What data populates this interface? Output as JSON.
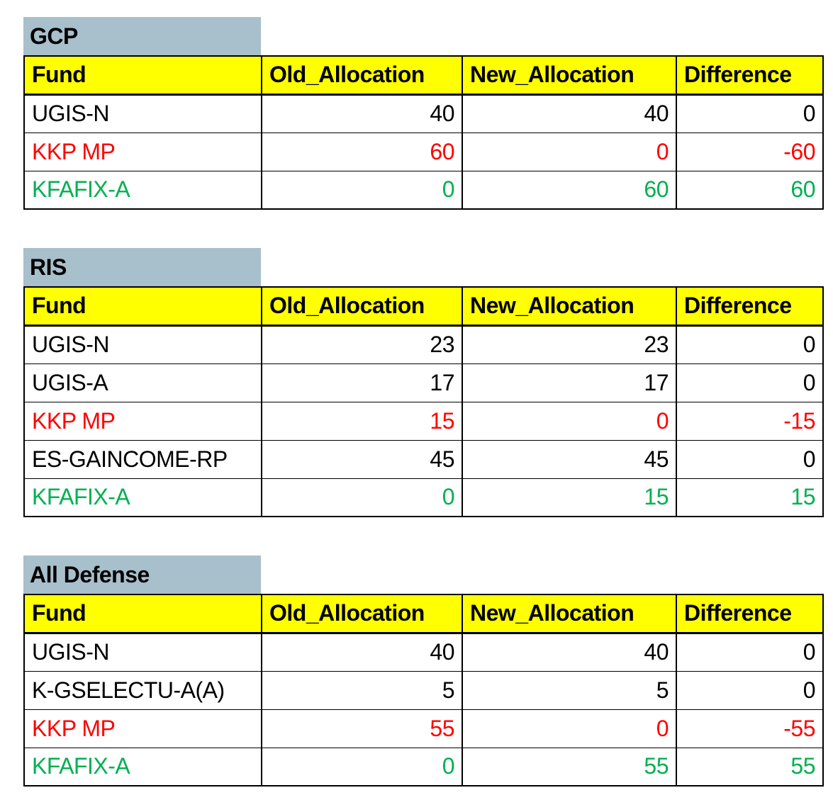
{
  "colors": {
    "page_bg": "#FFFFFF",
    "title_bg": "#A8BFCC",
    "header_bg": "#FFFF00",
    "grid_border": "#000000",
    "text_default": "#000000",
    "text_removed": "#FF0000",
    "text_added": "#00B050"
  },
  "columns": [
    "Fund",
    "Old_Allocation",
    "New_Allocation",
    "Difference"
  ],
  "tables": [
    {
      "title": "GCP",
      "rows": [
        {
          "fund": "UGIS-N",
          "old": "40",
          "new": "40",
          "diff": "0",
          "style": "default"
        },
        {
          "fund": "KKP MP",
          "old": "60",
          "new": "0",
          "diff": "-60",
          "style": "removed"
        },
        {
          "fund": "KFAFIX-A",
          "old": "0",
          "new": "60",
          "diff": "60",
          "style": "added"
        }
      ]
    },
    {
      "title": "RIS",
      "rows": [
        {
          "fund": "UGIS-N",
          "old": "23",
          "new": "23",
          "diff": "0",
          "style": "default"
        },
        {
          "fund": "UGIS-A",
          "old": "17",
          "new": "17",
          "diff": "0",
          "style": "default"
        },
        {
          "fund": "KKP MP",
          "old": "15",
          "new": "0",
          "diff": "-15",
          "style": "removed"
        },
        {
          "fund": "ES-GAINCOME-RP",
          "old": "45",
          "new": "45",
          "diff": "0",
          "style": "default"
        },
        {
          "fund": "KFAFIX-A",
          "old": "0",
          "new": "15",
          "diff": "15",
          "style": "added"
        }
      ]
    },
    {
      "title": "All Defense",
      "rows": [
        {
          "fund": "UGIS-N",
          "old": "40",
          "new": "40",
          "diff": "0",
          "style": "default"
        },
        {
          "fund": "K-GSELECTU-A(A)",
          "old": "5",
          "new": "5",
          "diff": "0",
          "style": "default"
        },
        {
          "fund": "KKP MP",
          "old": "55",
          "new": "0",
          "diff": "-55",
          "style": "removed"
        },
        {
          "fund": "KFAFIX-A",
          "old": "0",
          "new": "55",
          "diff": "55",
          "style": "added"
        }
      ]
    }
  ]
}
